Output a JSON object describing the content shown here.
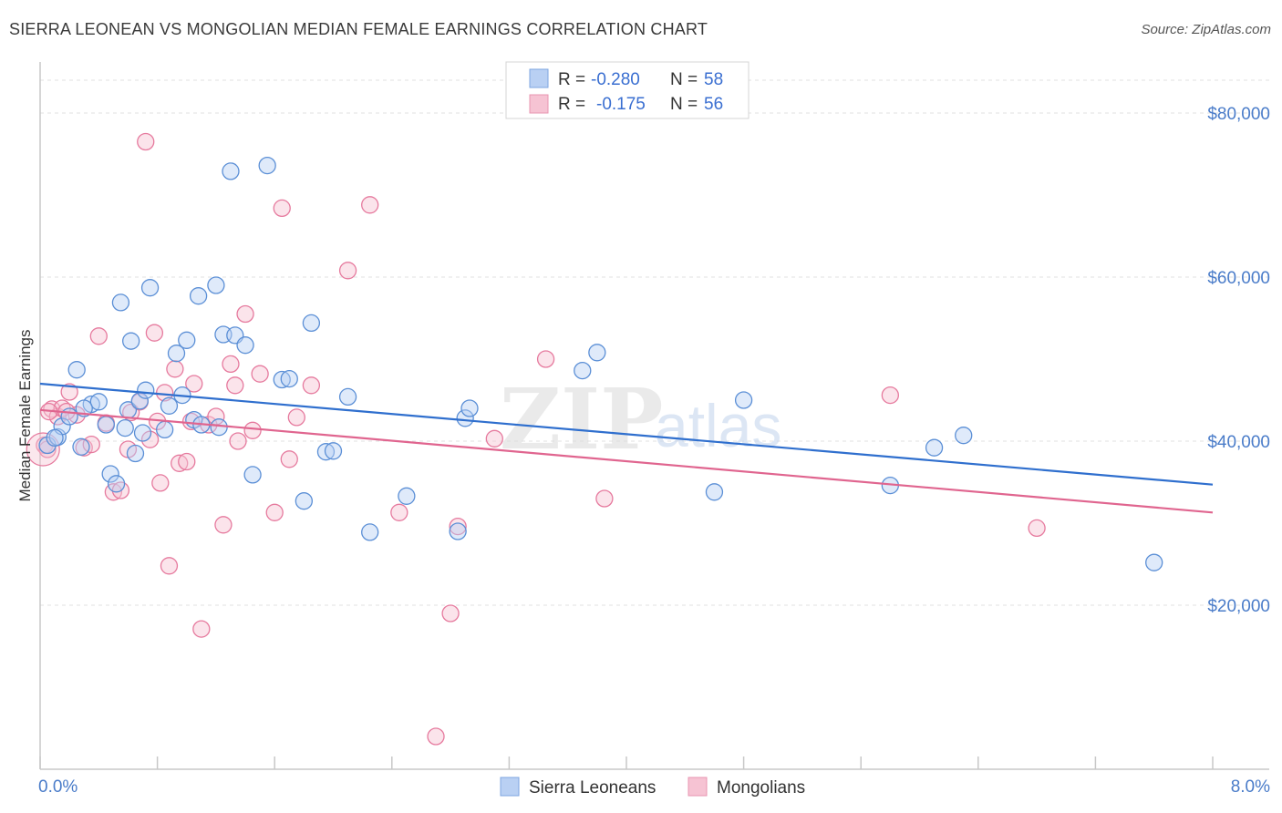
{
  "header": {
    "title": "SIERRA LEONEAN VS MONGOLIAN MEDIAN FEMALE EARNINGS CORRELATION CHART",
    "source": "Source: ZipAtlas.com"
  },
  "watermark": {
    "zip": "ZIP",
    "atlas": "atlas"
  },
  "legend": {
    "r_label": "R =",
    "n_label": "N =",
    "entries": [
      {
        "r": "-0.280",
        "n": "58"
      },
      {
        "r": "-0.175",
        "n": "56"
      }
    ]
  },
  "chart_data": {
    "type": "scatter",
    "title": "SIERRA LEONEAN VS MONGOLIAN MEDIAN FEMALE EARNINGS CORRELATION CHART",
    "xlabel": "",
    "ylabel": "Median Female Earnings",
    "xlim": [
      0,
      8
    ],
    "ylim": [
      0,
      85000
    ],
    "x_tick_labels": [
      "0.0%",
      "8.0%"
    ],
    "y_ticks": [
      20000,
      40000,
      60000,
      80000
    ],
    "y_tick_labels": [
      "$20,000",
      "$40,000",
      "$60,000",
      "$80,000"
    ],
    "grid": true,
    "legend_position": "top-center",
    "colors": {
      "blue": "#5b8fd6",
      "blue_fill": "#b9d0f3",
      "pink": "#e67a9e",
      "pink_fill": "#f6c3d3",
      "blue_line": "#2f6fce",
      "pink_line": "#e0658f"
    },
    "series": [
      {
        "name": "Sierra Leoneans",
        "trend": [
          [
            0,
            47000
          ],
          [
            8,
            34700
          ]
        ],
        "points": [
          [
            0.05,
            39500
          ],
          [
            0.12,
            40500
          ],
          [
            0.15,
            41800
          ],
          [
            0.2,
            43000
          ],
          [
            0.25,
            48700
          ],
          [
            0.28,
            39300
          ],
          [
            0.35,
            44500
          ],
          [
            0.4,
            44800
          ],
          [
            0.45,
            42000
          ],
          [
            0.48,
            36000
          ],
          [
            0.52,
            34800
          ],
          [
            0.55,
            56900
          ],
          [
            0.58,
            41600
          ],
          [
            0.6,
            43800
          ],
          [
            0.62,
            52200
          ],
          [
            0.65,
            38500
          ],
          [
            0.68,
            44900
          ],
          [
            0.7,
            41000
          ],
          [
            0.72,
            46200
          ],
          [
            0.75,
            58700
          ],
          [
            0.85,
            41400
          ],
          [
            0.88,
            44300
          ],
          [
            0.93,
            50700
          ],
          [
            0.97,
            45600
          ],
          [
            1.0,
            52300
          ],
          [
            1.05,
            42600
          ],
          [
            1.08,
            57700
          ],
          [
            1.1,
            42000
          ],
          [
            1.2,
            59000
          ],
          [
            1.22,
            41700
          ],
          [
            1.25,
            53000
          ],
          [
            1.3,
            72900
          ],
          [
            1.33,
            52900
          ],
          [
            1.4,
            51700
          ],
          [
            1.45,
            35900
          ],
          [
            1.55,
            73600
          ],
          [
            1.65,
            47500
          ],
          [
            1.7,
            47600
          ],
          [
            1.8,
            32700
          ],
          [
            1.85,
            54400
          ],
          [
            1.95,
            38700
          ],
          [
            2.0,
            38800
          ],
          [
            2.1,
            45400
          ],
          [
            2.25,
            28900
          ],
          [
            2.5,
            33300
          ],
          [
            2.85,
            29000
          ],
          [
            2.9,
            42800
          ],
          [
            2.93,
            44000
          ],
          [
            3.7,
            48600
          ],
          [
            3.8,
            50800
          ],
          [
            4.6,
            33800
          ],
          [
            4.8,
            45000
          ],
          [
            5.8,
            34600
          ],
          [
            6.1,
            39200
          ],
          [
            6.3,
            40700
          ],
          [
            7.6,
            25200
          ],
          [
            0.1,
            40400
          ],
          [
            0.3,
            44000
          ]
        ]
      },
      {
        "name": "Mongolians",
        "trend": [
          [
            0,
            43800
          ],
          [
            8,
            31300
          ]
        ],
        "points": [
          [
            0.03,
            39500
          ],
          [
            0.08,
            43900
          ],
          [
            0.12,
            43000
          ],
          [
            0.15,
            44000
          ],
          [
            0.2,
            46000
          ],
          [
            0.25,
            43200
          ],
          [
            0.3,
            39200
          ],
          [
            0.35,
            39600
          ],
          [
            0.4,
            52800
          ],
          [
            0.45,
            42200
          ],
          [
            0.5,
            33800
          ],
          [
            0.55,
            34000
          ],
          [
            0.6,
            39000
          ],
          [
            0.62,
            43500
          ],
          [
            0.68,
            44800
          ],
          [
            0.72,
            76500
          ],
          [
            0.75,
            40200
          ],
          [
            0.78,
            53200
          ],
          [
            0.8,
            42400
          ],
          [
            0.82,
            34900
          ],
          [
            0.85,
            45900
          ],
          [
            0.88,
            24800
          ],
          [
            0.92,
            48800
          ],
          [
            0.95,
            37300
          ],
          [
            1.0,
            37500
          ],
          [
            1.03,
            42400
          ],
          [
            1.05,
            47000
          ],
          [
            1.1,
            17100
          ],
          [
            1.15,
            42000
          ],
          [
            1.2,
            43000
          ],
          [
            1.25,
            29800
          ],
          [
            1.3,
            49400
          ],
          [
            1.33,
            46800
          ],
          [
            1.35,
            40000
          ],
          [
            1.4,
            55500
          ],
          [
            1.45,
            41300
          ],
          [
            1.5,
            48200
          ],
          [
            1.6,
            31300
          ],
          [
            1.65,
            68400
          ],
          [
            1.7,
            37800
          ],
          [
            1.75,
            42900
          ],
          [
            1.85,
            46800
          ],
          [
            2.1,
            60800
          ],
          [
            2.25,
            68800
          ],
          [
            2.45,
            31300
          ],
          [
            2.7,
            4000
          ],
          [
            2.8,
            19000
          ],
          [
            2.85,
            29600
          ],
          [
            3.1,
            40300
          ],
          [
            3.45,
            50000
          ],
          [
            3.85,
            33000
          ],
          [
            5.8,
            45600
          ],
          [
            6.8,
            29400
          ],
          [
            0.06,
            43600
          ],
          [
            0.18,
            43600
          ],
          [
            0.05,
            39000
          ]
        ]
      }
    ]
  }
}
